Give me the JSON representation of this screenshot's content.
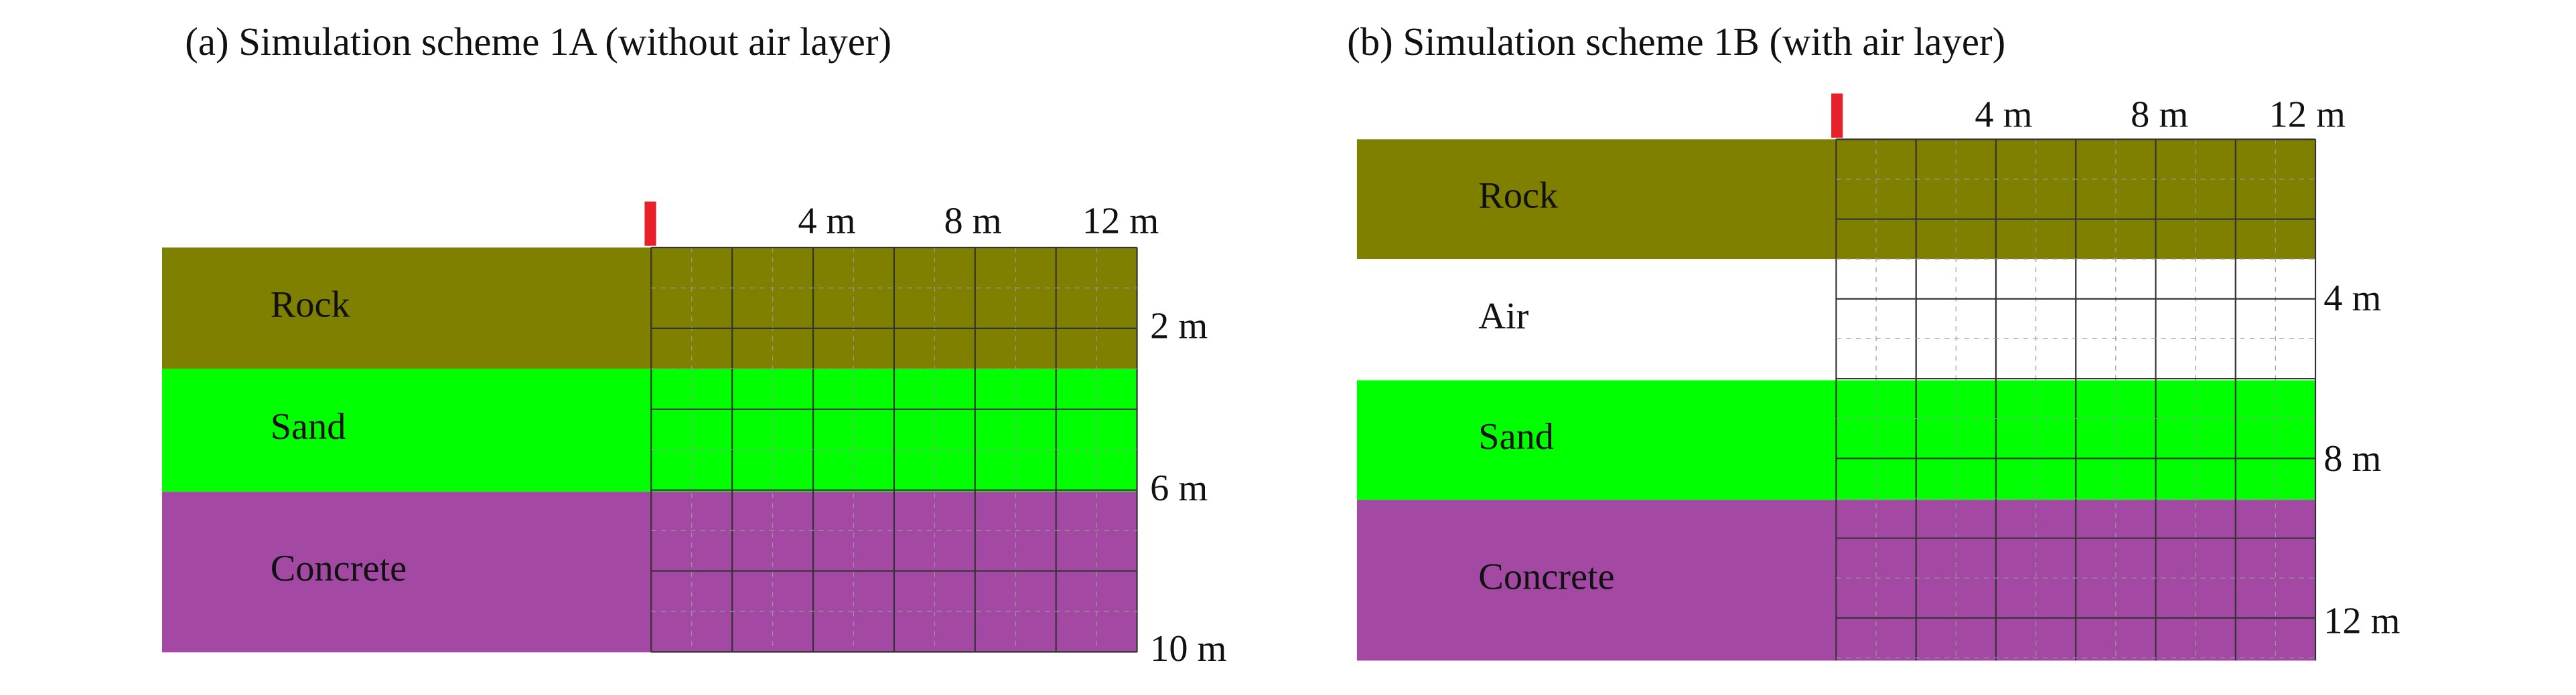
{
  "panels": [
    {
      "title": "(a)  Simulation scheme 1A (without air layer)",
      "layers": [
        {
          "label": "Rock"
        },
        {
          "label": "Sand"
        },
        {
          "label": "Concrete"
        }
      ],
      "top_labels": [
        "4 m",
        "8 m",
        "12 m"
      ],
      "side_labels": [
        "2 m",
        "6 m",
        "10 m"
      ]
    },
    {
      "title": "(b) Simulation scheme 1B (with air layer)",
      "layers": [
        {
          "label": "Rock"
        },
        {
          "label": "Air"
        },
        {
          "label": "Sand"
        },
        {
          "label": "Concrete"
        }
      ],
      "top_labels": [
        "4 m",
        "8 m",
        "12 m"
      ],
      "side_labels": [
        "4 m",
        "8 m",
        "12 m"
      ]
    }
  ]
}
